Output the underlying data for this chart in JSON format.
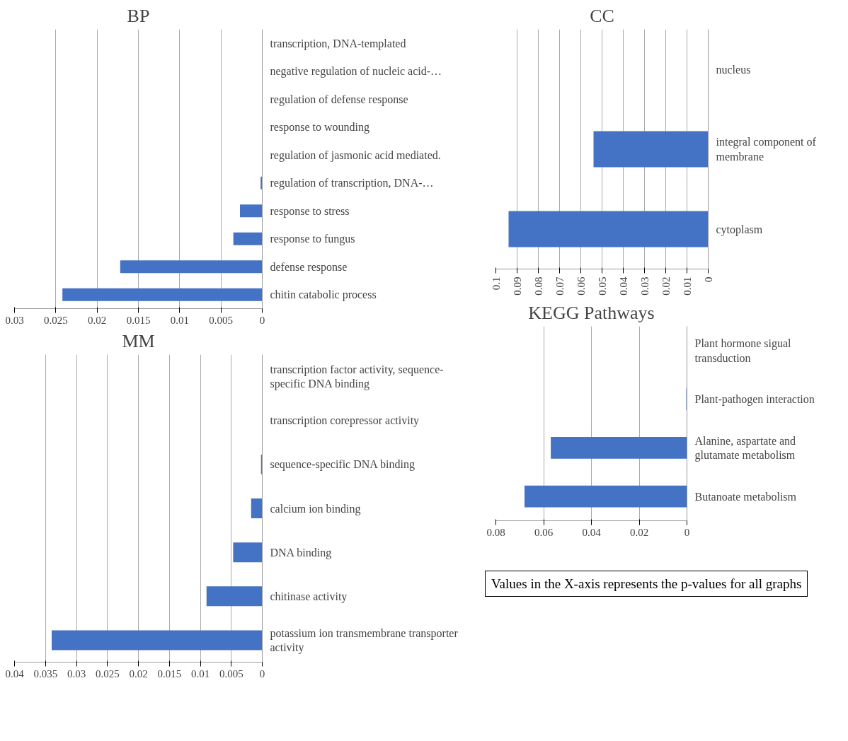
{
  "chart_data": [
    {
      "type": "bar",
      "orientation": "horizontal",
      "title": "BP",
      "categories": [
        "transcription, DNA-templated",
        "negative regulation of nucleic acid-…",
        "regulation of defense response",
        "response to wounding",
        "regulation of jasmonic acid mediated.",
        "regulation of transcription, DNA-…",
        "response to stress",
        "response to fungus",
        "defense response",
        "chitin catabolic process"
      ],
      "values": [
        0,
        0,
        0,
        0,
        0,
        0.0002,
        0.0027,
        0.0035,
        0.0172,
        0.0242
      ],
      "color": "#4472c4",
      "xlim": [
        0.03,
        0
      ],
      "xticks": [
        0.03,
        0.025,
        0.02,
        0.015,
        0.01,
        0.005,
        0
      ],
      "grid": "x"
    },
    {
      "type": "bar",
      "orientation": "horizontal",
      "title": "CC",
      "categories": [
        "nucleus",
        "integral component of membrane",
        "cytoplasm"
      ],
      "values": [
        0,
        0.054,
        0.094
      ],
      "color": "#4472c4",
      "xlim": [
        0.1,
        0
      ],
      "xticks": [
        0.1,
        0.09,
        0.08,
        0.07,
        0.06,
        0.05,
        0.04,
        0.03,
        0.02,
        0.01,
        0
      ],
      "grid": "x"
    },
    {
      "type": "bar",
      "orientation": "horizontal",
      "title": "MM",
      "categories": [
        "transcription factor activity, sequence-specific DNA binding",
        "transcription corepressor activity",
        "sequence-specific DNA binding",
        "calcium ion binding",
        "DNA binding",
        "chitinase activity",
        "potassium ion transmembrane transporter activity"
      ],
      "values": [
        0,
        0,
        0.0002,
        0.0018,
        0.0047,
        0.009,
        0.034
      ],
      "color": "#4472c4",
      "xlim": [
        0.04,
        0
      ],
      "xticks": [
        0.04,
        0.035,
        0.03,
        0.025,
        0.02,
        0.015,
        0.01,
        0.005,
        0
      ],
      "grid": "x"
    },
    {
      "type": "bar",
      "orientation": "horizontal",
      "title": "KEGG Pathways",
      "categories": [
        "Plant hormone sigual transduction",
        "Plant-pathogen interaction",
        "Alanine, aspartate and glutamate metabolism",
        "Butanoate metabolism"
      ],
      "values": [
        0,
        0.0003,
        0.057,
        0.068
      ],
      "color": "#4472c4",
      "xlim": [
        0.08,
        0
      ],
      "xticks": [
        0.08,
        0.06,
        0.04,
        0.02,
        0
      ],
      "grid": "x",
      "annotations": [
        "Values in the X-axis represents the p-values for all graphs"
      ]
    }
  ]
}
